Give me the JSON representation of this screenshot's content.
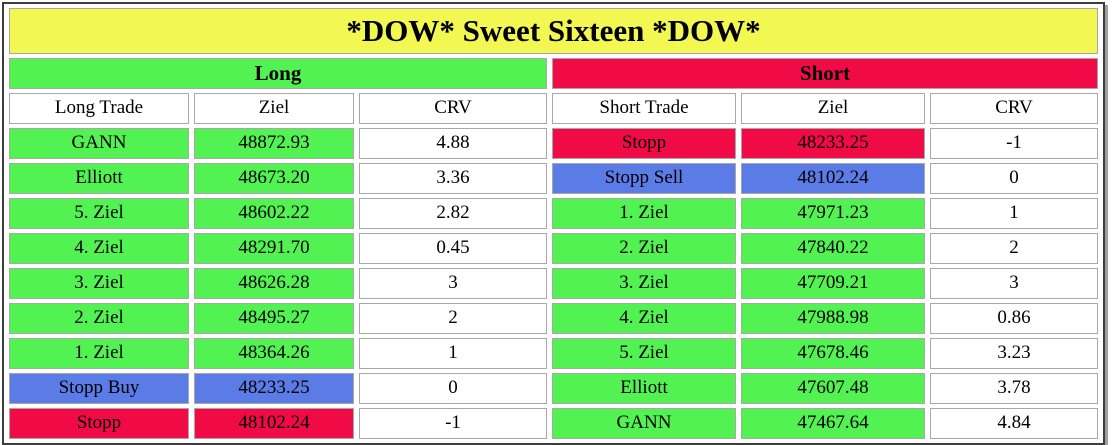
{
  "title": "*DOW* Sweet Sixteen *DOW*",
  "colors": {
    "title_bg": "#f3f752",
    "row_green": "#52f252",
    "row_blue": "#5b7ce6",
    "row_red": "#f00a46",
    "cell_border": "#a8a8a8",
    "frame": "#3d3d3d",
    "shadow": "#a0a0a0",
    "text": "#000000"
  },
  "sections": [
    {
      "id": "long",
      "label": "Long",
      "header_color": "green",
      "columns": [
        "Long Trade",
        "Ziel",
        "CRV"
      ],
      "rows": [
        {
          "trade": "GANN",
          "ziel": "48872.93",
          "crv": "4.88",
          "type": "green"
        },
        {
          "trade": "Elliott",
          "ziel": "48673.20",
          "crv": "3.36",
          "type": "green"
        },
        {
          "trade": "5. Ziel",
          "ziel": "48602.22",
          "crv": "2.82",
          "type": "green"
        },
        {
          "trade": "4. Ziel",
          "ziel": "48291.70",
          "crv": "0.45",
          "type": "green"
        },
        {
          "trade": "3. Ziel",
          "ziel": "48626.28",
          "crv": "3",
          "type": "green"
        },
        {
          "trade": "2. Ziel",
          "ziel": "48495.27",
          "crv": "2",
          "type": "green"
        },
        {
          "trade": "1. Ziel",
          "ziel": "48364.26",
          "crv": "1",
          "type": "green"
        },
        {
          "trade": "Stopp Buy",
          "ziel": "48233.25",
          "crv": "0",
          "type": "blue"
        },
        {
          "trade": "Stopp",
          "ziel": "48102.24",
          "crv": "-1",
          "type": "red"
        }
      ]
    },
    {
      "id": "short",
      "label": "Short",
      "header_color": "red",
      "columns": [
        "Short Trade",
        "Ziel",
        "CRV"
      ],
      "rows": [
        {
          "trade": "Stopp",
          "ziel": "48233.25",
          "crv": "-1",
          "type": "red"
        },
        {
          "trade": "Stopp Sell",
          "ziel": "48102.24",
          "crv": "0",
          "type": "blue"
        },
        {
          "trade": "1. Ziel",
          "ziel": "47971.23",
          "crv": "1",
          "type": "green"
        },
        {
          "trade": "2. Ziel",
          "ziel": "47840.22",
          "crv": "2",
          "type": "green"
        },
        {
          "trade": "3. Ziel",
          "ziel": "47709.21",
          "crv": "3",
          "type": "green"
        },
        {
          "trade": "4. Ziel",
          "ziel": "47988.98",
          "crv": "0.86",
          "type": "green"
        },
        {
          "trade": "5. Ziel",
          "ziel": "47678.46",
          "crv": "3.23",
          "type": "green"
        },
        {
          "trade": "Elliott",
          "ziel": "47607.48",
          "crv": "3.78",
          "type": "green"
        },
        {
          "trade": "GANN",
          "ziel": "47467.64",
          "crv": "4.84",
          "type": "green"
        }
      ]
    }
  ]
}
